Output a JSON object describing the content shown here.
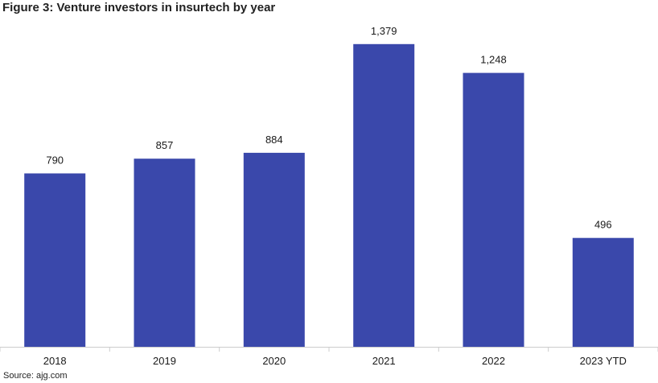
{
  "header": {
    "title": "Figure 3: Venture investors in insurtech by year"
  },
  "footer": {
    "source": "Source: ajg.com"
  },
  "colors": {
    "bar": "#3a48ab",
    "axis": "#cccccc"
  },
  "chart_data": {
    "type": "bar",
    "title": "Figure 3: Venture investors in insurtech by year",
    "xlabel": "",
    "ylabel": "",
    "categories": [
      "2018",
      "2019",
      "2020",
      "2021",
      "2022",
      "2023 YTD"
    ],
    "values": [
      790,
      857,
      884,
      1379,
      1248,
      496
    ],
    "value_labels": [
      "790",
      "857",
      "884",
      "1,379",
      "1,248",
      "496"
    ],
    "ylim": [
      0,
      1470
    ],
    "grid": false,
    "legend": "none"
  }
}
